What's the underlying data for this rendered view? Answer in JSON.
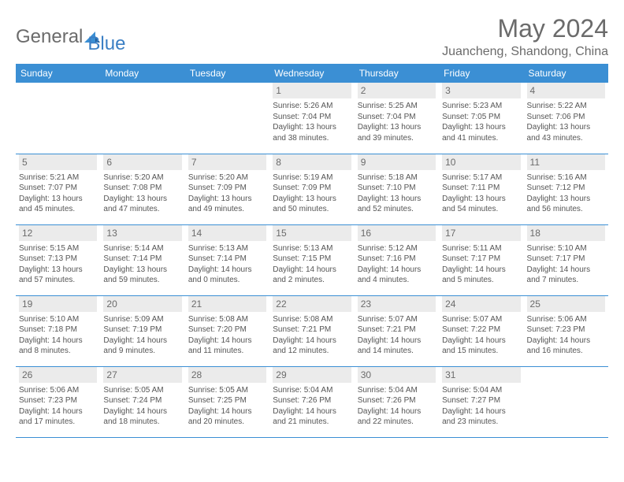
{
  "brand": {
    "text1": "General",
    "text2": "Blue"
  },
  "title": "May 2024",
  "location": "Juancheng, Shandong, China",
  "colors": {
    "header_bg": "#3b8fd4",
    "header_text": "#ffffff",
    "daynum_bg": "#ebebeb",
    "body_text": "#555555",
    "title_text": "#6b6b6b",
    "row_divider": "#3b8fd4"
  },
  "day_labels": [
    "Sunday",
    "Monday",
    "Tuesday",
    "Wednesday",
    "Thursday",
    "Friday",
    "Saturday"
  ],
  "weeks": [
    [
      null,
      null,
      null,
      {
        "d": "1",
        "sr": "Sunrise: 5:26 AM",
        "ss": "Sunset: 7:04 PM",
        "dl1": "Daylight: 13 hours",
        "dl2": "and 38 minutes."
      },
      {
        "d": "2",
        "sr": "Sunrise: 5:25 AM",
        "ss": "Sunset: 7:04 PM",
        "dl1": "Daylight: 13 hours",
        "dl2": "and 39 minutes."
      },
      {
        "d": "3",
        "sr": "Sunrise: 5:23 AM",
        "ss": "Sunset: 7:05 PM",
        "dl1": "Daylight: 13 hours",
        "dl2": "and 41 minutes."
      },
      {
        "d": "4",
        "sr": "Sunrise: 5:22 AM",
        "ss": "Sunset: 7:06 PM",
        "dl1": "Daylight: 13 hours",
        "dl2": "and 43 minutes."
      }
    ],
    [
      {
        "d": "5",
        "sr": "Sunrise: 5:21 AM",
        "ss": "Sunset: 7:07 PM",
        "dl1": "Daylight: 13 hours",
        "dl2": "and 45 minutes."
      },
      {
        "d": "6",
        "sr": "Sunrise: 5:20 AM",
        "ss": "Sunset: 7:08 PM",
        "dl1": "Daylight: 13 hours",
        "dl2": "and 47 minutes."
      },
      {
        "d": "7",
        "sr": "Sunrise: 5:20 AM",
        "ss": "Sunset: 7:09 PM",
        "dl1": "Daylight: 13 hours",
        "dl2": "and 49 minutes."
      },
      {
        "d": "8",
        "sr": "Sunrise: 5:19 AM",
        "ss": "Sunset: 7:09 PM",
        "dl1": "Daylight: 13 hours",
        "dl2": "and 50 minutes."
      },
      {
        "d": "9",
        "sr": "Sunrise: 5:18 AM",
        "ss": "Sunset: 7:10 PM",
        "dl1": "Daylight: 13 hours",
        "dl2": "and 52 minutes."
      },
      {
        "d": "10",
        "sr": "Sunrise: 5:17 AM",
        "ss": "Sunset: 7:11 PM",
        "dl1": "Daylight: 13 hours",
        "dl2": "and 54 minutes."
      },
      {
        "d": "11",
        "sr": "Sunrise: 5:16 AM",
        "ss": "Sunset: 7:12 PM",
        "dl1": "Daylight: 13 hours",
        "dl2": "and 56 minutes."
      }
    ],
    [
      {
        "d": "12",
        "sr": "Sunrise: 5:15 AM",
        "ss": "Sunset: 7:13 PM",
        "dl1": "Daylight: 13 hours",
        "dl2": "and 57 minutes."
      },
      {
        "d": "13",
        "sr": "Sunrise: 5:14 AM",
        "ss": "Sunset: 7:14 PM",
        "dl1": "Daylight: 13 hours",
        "dl2": "and 59 minutes."
      },
      {
        "d": "14",
        "sr": "Sunrise: 5:13 AM",
        "ss": "Sunset: 7:14 PM",
        "dl1": "Daylight: 14 hours",
        "dl2": "and 0 minutes."
      },
      {
        "d": "15",
        "sr": "Sunrise: 5:13 AM",
        "ss": "Sunset: 7:15 PM",
        "dl1": "Daylight: 14 hours",
        "dl2": "and 2 minutes."
      },
      {
        "d": "16",
        "sr": "Sunrise: 5:12 AM",
        "ss": "Sunset: 7:16 PM",
        "dl1": "Daylight: 14 hours",
        "dl2": "and 4 minutes."
      },
      {
        "d": "17",
        "sr": "Sunrise: 5:11 AM",
        "ss": "Sunset: 7:17 PM",
        "dl1": "Daylight: 14 hours",
        "dl2": "and 5 minutes."
      },
      {
        "d": "18",
        "sr": "Sunrise: 5:10 AM",
        "ss": "Sunset: 7:17 PM",
        "dl1": "Daylight: 14 hours",
        "dl2": "and 7 minutes."
      }
    ],
    [
      {
        "d": "19",
        "sr": "Sunrise: 5:10 AM",
        "ss": "Sunset: 7:18 PM",
        "dl1": "Daylight: 14 hours",
        "dl2": "and 8 minutes."
      },
      {
        "d": "20",
        "sr": "Sunrise: 5:09 AM",
        "ss": "Sunset: 7:19 PM",
        "dl1": "Daylight: 14 hours",
        "dl2": "and 9 minutes."
      },
      {
        "d": "21",
        "sr": "Sunrise: 5:08 AM",
        "ss": "Sunset: 7:20 PM",
        "dl1": "Daylight: 14 hours",
        "dl2": "and 11 minutes."
      },
      {
        "d": "22",
        "sr": "Sunrise: 5:08 AM",
        "ss": "Sunset: 7:21 PM",
        "dl1": "Daylight: 14 hours",
        "dl2": "and 12 minutes."
      },
      {
        "d": "23",
        "sr": "Sunrise: 5:07 AM",
        "ss": "Sunset: 7:21 PM",
        "dl1": "Daylight: 14 hours",
        "dl2": "and 14 minutes."
      },
      {
        "d": "24",
        "sr": "Sunrise: 5:07 AM",
        "ss": "Sunset: 7:22 PM",
        "dl1": "Daylight: 14 hours",
        "dl2": "and 15 minutes."
      },
      {
        "d": "25",
        "sr": "Sunrise: 5:06 AM",
        "ss": "Sunset: 7:23 PM",
        "dl1": "Daylight: 14 hours",
        "dl2": "and 16 minutes."
      }
    ],
    [
      {
        "d": "26",
        "sr": "Sunrise: 5:06 AM",
        "ss": "Sunset: 7:23 PM",
        "dl1": "Daylight: 14 hours",
        "dl2": "and 17 minutes."
      },
      {
        "d": "27",
        "sr": "Sunrise: 5:05 AM",
        "ss": "Sunset: 7:24 PM",
        "dl1": "Daylight: 14 hours",
        "dl2": "and 18 minutes."
      },
      {
        "d": "28",
        "sr": "Sunrise: 5:05 AM",
        "ss": "Sunset: 7:25 PM",
        "dl1": "Daylight: 14 hours",
        "dl2": "and 20 minutes."
      },
      {
        "d": "29",
        "sr": "Sunrise: 5:04 AM",
        "ss": "Sunset: 7:26 PM",
        "dl1": "Daylight: 14 hours",
        "dl2": "and 21 minutes."
      },
      {
        "d": "30",
        "sr": "Sunrise: 5:04 AM",
        "ss": "Sunset: 7:26 PM",
        "dl1": "Daylight: 14 hours",
        "dl2": "and 22 minutes."
      },
      {
        "d": "31",
        "sr": "Sunrise: 5:04 AM",
        "ss": "Sunset: 7:27 PM",
        "dl1": "Daylight: 14 hours",
        "dl2": "and 23 minutes."
      },
      null
    ]
  ]
}
